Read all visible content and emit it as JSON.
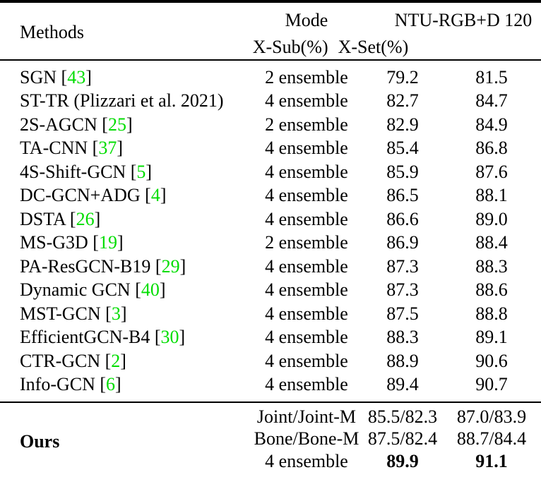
{
  "colors": {
    "citation_green": "#00dd00",
    "text": "#000000",
    "background": "#ffffff"
  },
  "header": {
    "methods": "Methods",
    "mode": "Mode",
    "dataset": "NTU-RGB+D 120",
    "xsub": "X-Sub(%)",
    "xset": "X-Set(%)"
  },
  "citation": {
    "open": " [",
    "close": "]"
  },
  "table": {
    "rows": [
      {
        "method": "SGN",
        "cite": "43",
        "mode": "2 ensemble",
        "xsub": "79.2",
        "xset": "81.5"
      },
      {
        "method": "ST-TR (Plizzari et al. 2021)",
        "cite": "",
        "mode": "4 ensemble",
        "xsub": "82.7",
        "xset": "84.7"
      },
      {
        "method": "2S-AGCN",
        "cite": "25",
        "mode": "2 ensemble",
        "xsub": "82.9",
        "xset": "84.9"
      },
      {
        "method": "TA-CNN",
        "cite": "37",
        "mode": "4 ensemble",
        "xsub": "85.4",
        "xset": "86.8"
      },
      {
        "method": "4S-Shift-GCN",
        "cite": "5",
        "mode": "4 ensemble",
        "xsub": "85.9",
        "xset": "87.6"
      },
      {
        "method": "DC-GCN+ADG",
        "cite": "4",
        "mode": "4 ensemble",
        "xsub": "86.5",
        "xset": "88.1"
      },
      {
        "method": "DSTA",
        "cite": "26",
        "mode": "4 ensemble",
        "xsub": "86.6",
        "xset": "89.0"
      },
      {
        "method": "MS-G3D",
        "cite": "19",
        "mode": "2 ensemble",
        "xsub": "86.9",
        "xset": "88.4"
      },
      {
        "method": "PA-ResGCN-B19",
        "cite": "29",
        "mode": "4 ensemble",
        "xsub": "87.3",
        "xset": "88.3"
      },
      {
        "method": "Dynamic GCN",
        "cite": "40",
        "mode": "4 ensemble",
        "xsub": "87.3",
        "xset": "88.6"
      },
      {
        "method": "MST-GCN",
        "cite": "3",
        "mode": "4 ensemble",
        "xsub": "87.5",
        "xset": "88.8"
      },
      {
        "method": "EfficientGCN-B4",
        "cite": "30",
        "mode": "4 ensemble",
        "xsub": "88.3",
        "xset": "89.1"
      },
      {
        "method": "CTR-GCN",
        "cite": "2",
        "mode": "4 ensemble",
        "xsub": "88.9",
        "xset": "90.6"
      },
      {
        "method": "Info-GCN",
        "cite": "6",
        "mode": "4 ensemble",
        "xsub": "89.4",
        "xset": "90.7"
      }
    ]
  },
  "ours": {
    "label": "Ours",
    "rows": [
      {
        "mode": "Joint/Joint-M",
        "xsub": "85.5/82.3",
        "xset": "87.0/83.9",
        "bold": false
      },
      {
        "mode": "Bone/Bone-M",
        "xsub": "87.5/82.4",
        "xset": "88.7/84.4",
        "bold": false
      },
      {
        "mode": "4 ensemble",
        "xsub": "89.9",
        "xset": "91.1",
        "bold": true
      }
    ]
  }
}
